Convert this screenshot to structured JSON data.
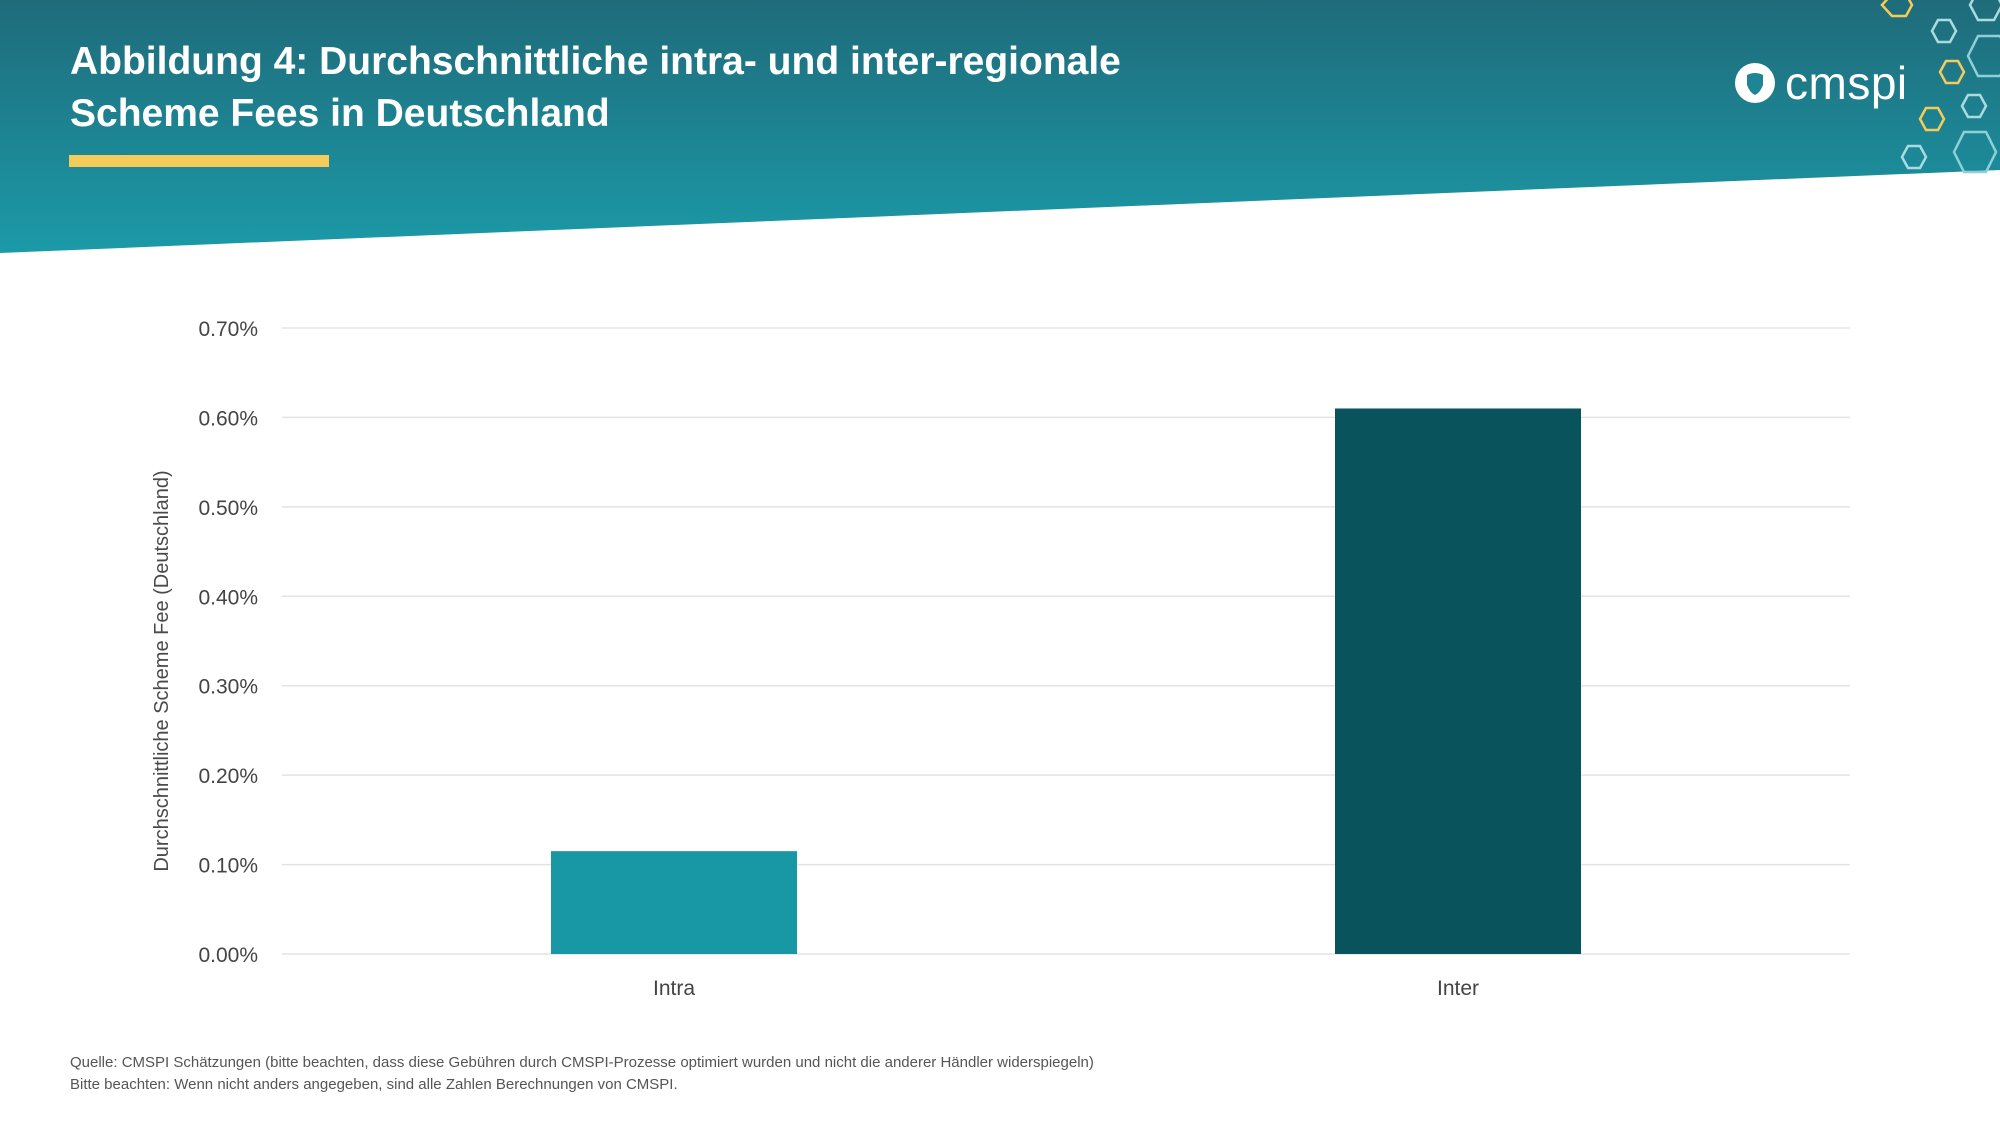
{
  "header": {
    "title_line1": "Abbildung 4: Durchschnittliche intra- und inter-regionale",
    "title_line2": "Scheme Fees in Deutschland",
    "logo_text": "cmspi",
    "accent_color": "#f5cc5a",
    "gradient_top": "#1f6b7a",
    "gradient_bottom": "#1b9aa8"
  },
  "chart_data": {
    "type": "bar",
    "categories": [
      "Intra",
      "Inter"
    ],
    "values": [
      0.00115,
      0.0061
    ],
    "bar_colors": [
      "#1897a5",
      "#08535c"
    ],
    "ylabel": "Durchschnittliche Scheme Fee (Deutschland)",
    "ylim": [
      0,
      0.007
    ],
    "yticks": [
      0,
      0.001,
      0.002,
      0.003,
      0.004,
      0.005,
      0.006,
      0.007
    ],
    "ytick_labels": [
      "0.00%",
      "0.10%",
      "0.20%",
      "0.30%",
      "0.40%",
      "0.50%",
      "0.60%",
      "0.70%"
    ],
    "grid": true
  },
  "footer": {
    "line1": "Quelle: CMSPI Schätzungen (bitte beachten, dass diese Gebühren durch CMSPI-Prozesse optimiert wurden und nicht die anderer Händler widerspiegeln)",
    "line2": "Bitte beachten: Wenn nicht anders angegeben, sind alle Zahlen Berechnungen von CMSPI."
  }
}
